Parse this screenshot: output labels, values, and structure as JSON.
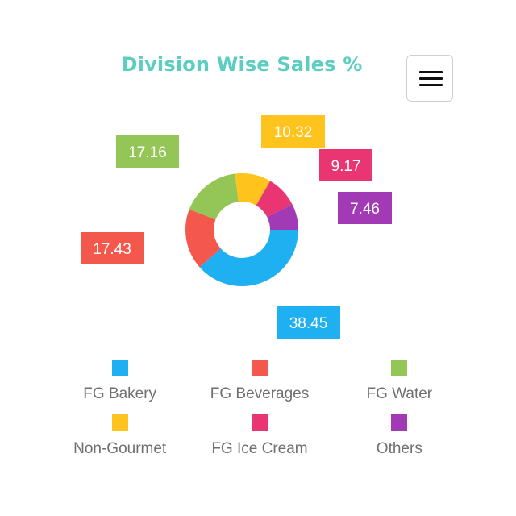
{
  "chart_data": {
    "type": "pie",
    "title": "Division Wise Sales %",
    "hole": "donut",
    "categories": [
      "FG Bakery",
      "FG Beverages",
      "FG Water",
      "Non-Gourmet",
      "FG Ice Cream",
      "Others"
    ],
    "values": [
      38.45,
      17.43,
      17.16,
      10.32,
      9.17,
      7.46
    ],
    "data_labels": [
      "38.45",
      "17.43",
      "17.16",
      "10.32",
      "9.17",
      "7.46"
    ],
    "colors": [
      "#1fb0f2",
      "#f4574b",
      "#93c557",
      "#fec31d",
      "#ea3573",
      "#a33ab5"
    ],
    "legend": "bottom"
  },
  "toolbar": {
    "menu_icon": "hamburger-menu-icon"
  }
}
